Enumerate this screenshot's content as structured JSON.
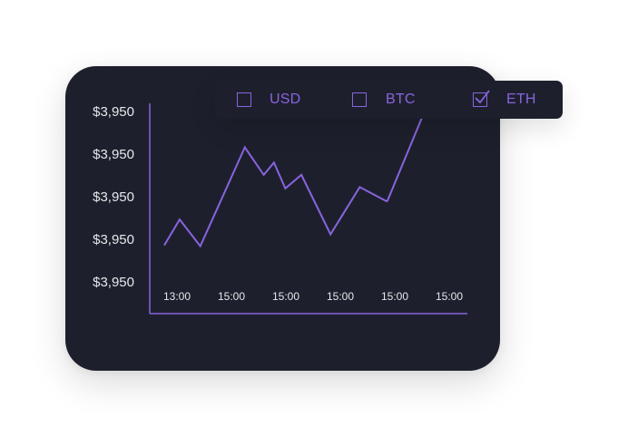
{
  "toggles": [
    {
      "label": "USD",
      "checked": false
    },
    {
      "label": "BTC",
      "checked": false
    },
    {
      "label": "ETH",
      "checked": true
    }
  ],
  "colors": {
    "card": "#1d202c",
    "accent": "#8a63e0",
    "text": "#e6e7ec"
  },
  "chart_data": {
    "type": "line",
    "title": "",
    "xlabel": "",
    "ylabel": "",
    "y_tick_labels": [
      "$3,950",
      "$3,950",
      "$3,950",
      "$3,950",
      "$3,950"
    ],
    "x_tick_labels": [
      "13:00",
      "15:00",
      "15:00",
      "15:00",
      "15:00",
      "15:00"
    ],
    "x_range": [
      0,
      8.84
    ],
    "y_range": [
      0,
      4
    ],
    "series": [
      {
        "values_x": [
          0,
          0.45,
          1.05,
          2.35,
          2.9,
          3.2,
          3.53,
          4.0,
          4.85,
          5.7,
          6.5
        ],
        "values_y": [
          0.92,
          1.51,
          0.9,
          3.16,
          2.53,
          2.81,
          2.22,
          2.53,
          1.17,
          2.25,
          1.92
        ]
      }
    ],
    "trend_arrow": {
      "from": [
        6.5,
        1.92
      ],
      "to": [
        7.76,
        4.3
      ]
    },
    "grid": false,
    "legend": "none"
  }
}
